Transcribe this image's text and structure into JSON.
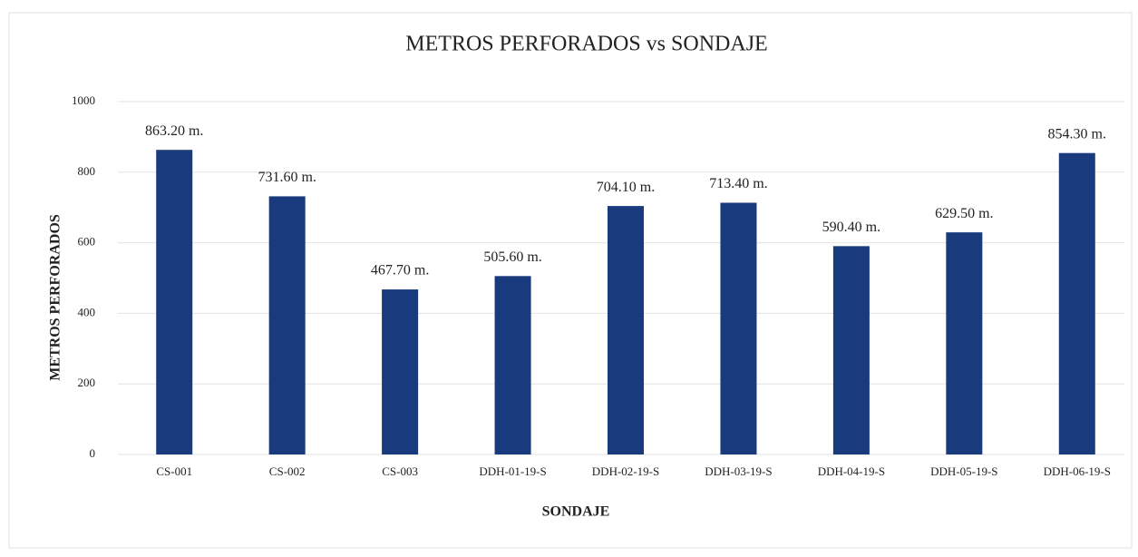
{
  "chart_data": {
    "type": "bar",
    "title": "METROS PERFORADOS  vs SONDAJE",
    "x_label": "SONDAJE",
    "y_label": "METROS PERFORADOS",
    "categories": [
      "CS-001",
      "CS-002",
      "CS-003",
      "DDH-01-19-S",
      "DDH-02-19-S",
      "DDH-03-19-S",
      "DDH-04-19-S",
      "DDH-05-19-S",
      "DDH-06-19-S"
    ],
    "values": [
      863.2,
      731.6,
      467.7,
      505.6,
      704.1,
      713.4,
      590.4,
      629.5,
      854.3
    ],
    "value_labels": [
      "863.20 m.",
      "731.60 m.",
      "467.70 m.",
      "505.60 m.",
      "704.10 m.",
      "713.40 m.",
      "590.40 m.",
      "629.50 m.",
      "854.30 m."
    ],
    "color": "#193a7d",
    "ylim": [
      0,
      1000
    ],
    "yticks": [
      0,
      200,
      400,
      600,
      800,
      1000
    ],
    "grid": true
  }
}
